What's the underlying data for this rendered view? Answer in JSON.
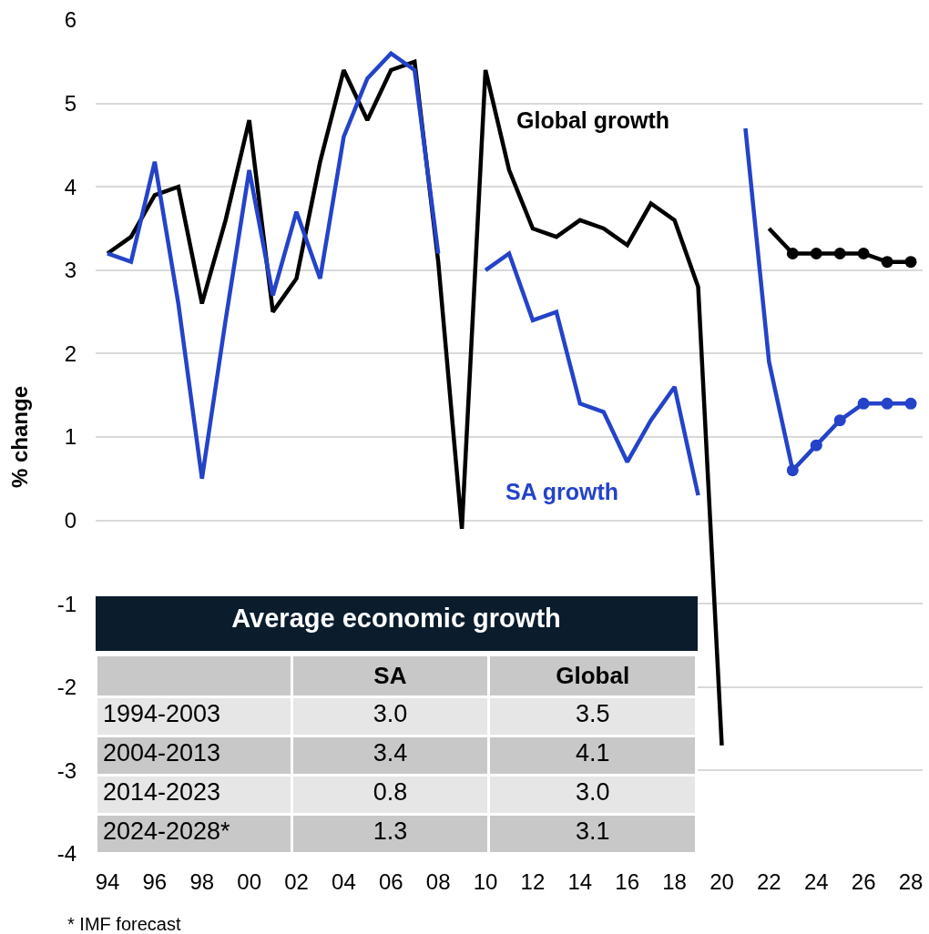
{
  "chart_data": [
    {
      "type": "line",
      "ylabel": "% change",
      "x": [
        1994,
        1995,
        1996,
        1997,
        1998,
        1999,
        2000,
        2001,
        2002,
        2003,
        2004,
        2005,
        2006,
        2007,
        2008,
        2009,
        2010,
        2011,
        2012,
        2013,
        2014,
        2015,
        2016,
        2017,
        2018,
        2019,
        2020,
        2021,
        2022,
        2023
      ],
      "series": [
        {
          "name": "Global growth",
          "color": "#000000",
          "values": [
            3.2,
            3.4,
            3.9,
            4.0,
            2.6,
            3.6,
            4.8,
            2.5,
            2.9,
            4.3,
            5.4,
            4.8,
            5.4,
            5.5,
            3.1,
            -0.1,
            5.4,
            4.2,
            3.5,
            3.4,
            3.6,
            3.5,
            3.3,
            3.8,
            3.6,
            2.8,
            -2.7,
            null,
            3.5,
            3.2
          ]
        },
        {
          "color": "#000000",
          "x": [
            2023,
            2024,
            2025,
            2026,
            2027,
            2028
          ],
          "values": [
            3.2,
            3.2,
            3.2,
            3.2,
            3.1,
            3.1
          ],
          "marker": "circle"
        },
        {
          "name": "SA growth",
          "color": "#2443c8",
          "values": [
            3.2,
            3.1,
            4.3,
            2.6,
            0.5,
            2.4,
            4.2,
            2.7,
            3.7,
            2.9,
            4.6,
            5.3,
            5.6,
            5.4,
            3.2,
            null,
            3.0,
            3.2,
            2.4,
            2.5,
            1.4,
            1.3,
            0.7,
            1.2,
            1.6,
            0.3,
            null,
            4.7,
            1.9,
            0.6
          ]
        },
        {
          "color": "#2443c8",
          "x": [
            2023,
            2024,
            2025,
            2026,
            2027,
            2028
          ],
          "values": [
            0.6,
            0.9,
            1.2,
            1.4,
            1.4,
            1.4
          ],
          "marker": "circle"
        }
      ],
      "xlim": [
        1993.5,
        2028.5
      ],
      "xticks": [
        {
          "value": 1994,
          "label": "94"
        },
        {
          "value": 1996,
          "label": "96"
        },
        {
          "value": 1998,
          "label": "98"
        },
        {
          "value": 2000,
          "label": "00"
        },
        {
          "value": 2002,
          "label": "02"
        },
        {
          "value": 2004,
          "label": "04"
        },
        {
          "value": 2006,
          "label": "06"
        },
        {
          "value": 2008,
          "label": "08"
        },
        {
          "value": 2010,
          "label": "10"
        },
        {
          "value": 2012,
          "label": "12"
        },
        {
          "value": 2014,
          "label": "14"
        },
        {
          "value": 2016,
          "label": "16"
        },
        {
          "value": 2018,
          "label": "18"
        },
        {
          "value": 2020,
          "label": "20"
        },
        {
          "value": 2022,
          "label": "22"
        },
        {
          "value": 2024,
          "label": "24"
        },
        {
          "value": 2026,
          "label": "26"
        },
        {
          "value": 2028,
          "label": "28"
        }
      ],
      "ylim": [
        -4,
        6
      ],
      "yticks": [
        -4,
        -3,
        -2,
        -1,
        0,
        1,
        2,
        3,
        4,
        5,
        6
      ],
      "grid": "y",
      "marker": "none",
      "line_style": "solid",
      "annotations": [
        "* IMF forecast"
      ]
    },
    {
      "type": "other",
      "title": "Average economic growth",
      "categories": [
        "1994-2003",
        "2004-2013",
        "2014-2023",
        "2024-2028*"
      ],
      "series": [
        {
          "name": "SA",
          "colors": [
            "#e6e6e6",
            "#c8c8c8",
            "#e6e6e6",
            "#c8c8c8"
          ],
          "values": [
            3.0,
            3.4,
            0.8,
            1.3
          ],
          "value_labels": [
            "3.0",
            "3.4",
            "0.8",
            "1.3"
          ]
        },
        {
          "name": "Global",
          "colors": [
            "#e6e6e6",
            "#c8c8c8",
            "#e6e6e6",
            "#c8c8c8"
          ],
          "values": [
            3.5,
            4.1,
            3.0,
            3.1
          ],
          "value_labels": [
            "3.5",
            "4.1",
            "3.0",
            "3.1"
          ]
        }
      ]
    }
  ]
}
